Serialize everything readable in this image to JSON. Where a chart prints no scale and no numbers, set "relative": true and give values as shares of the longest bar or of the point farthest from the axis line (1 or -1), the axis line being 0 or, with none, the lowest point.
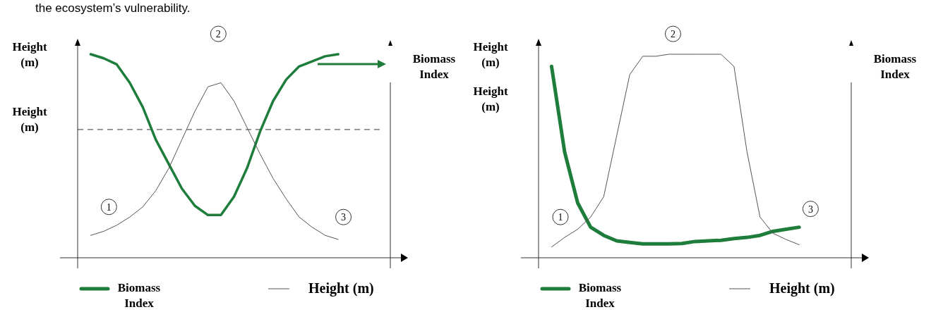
{
  "chart_data": [
    {
      "type": "line",
      "relative": true,
      "ylabel": "Height (m)",
      "y2label": "Biomass Index",
      "legend": "bottom",
      "categories": [
        null,
        null,
        null,
        null,
        null,
        null,
        null,
        null,
        null,
        null,
        null,
        null,
        null,
        null,
        null,
        null,
        null,
        null,
        null,
        null
      ],
      "series": [
        {
          "name": "Biomass Index",
          "color": "#1e7d3a",
          "values": [
            1.0,
            0.98,
            0.95,
            0.86,
            0.74,
            0.58,
            0.46,
            0.34,
            0.255,
            0.21,
            0.21,
            0.3,
            0.44,
            0.62,
            0.77,
            0.875,
            0.94,
            0.965,
            0.99,
            1.0
          ]
        },
        {
          "name": "Height (m)",
          "color": "#555555",
          "values": [
            0.11,
            0.13,
            0.16,
            0.2,
            0.25,
            0.33,
            0.44,
            0.58,
            0.72,
            0.84,
            0.86,
            0.77,
            0.64,
            0.51,
            0.39,
            0.29,
            0.2,
            0.15,
            0.11,
            0.09
          ]
        }
      ],
      "ref_lines": [
        {
          "axis": "y",
          "value": 0.63,
          "label": "Height (m)",
          "line_style": "dashed"
        }
      ],
      "annotations": [
        "the ecosystem’s vulnerability.",
        "1",
        "2",
        "3"
      ]
    },
    {
      "type": "line",
      "relative": true,
      "ylabel": "Height (m)",
      "y2label": "Biomass Index",
      "legend": "bottom",
      "categories": [
        null,
        null,
        null,
        null,
        null,
        null,
        null,
        null,
        null,
        null,
        null,
        null,
        null,
        null,
        null,
        null,
        null,
        null,
        null,
        null
      ],
      "series": [
        {
          "name": "Biomass Index",
          "color": "#1e7d3a",
          "values": [
            0.94,
            0.52,
            0.27,
            0.15,
            0.11,
            0.083,
            0.075,
            0.068,
            0.068,
            0.068,
            0.07,
            0.08,
            0.083,
            0.086,
            0.094,
            0.1,
            0.11,
            0.13,
            0.14,
            0.15
          ]
        },
        {
          "name": "Height (m)",
          "color": "#555555",
          "values": [
            0.053,
            0.1,
            0.14,
            0.2,
            0.3,
            0.6,
            0.9,
            0.99,
            0.99,
            1.0,
            1.0,
            1.0,
            1.0,
            1.0,
            0.94,
            0.52,
            0.2,
            0.12,
            0.09,
            0.064
          ]
        }
      ],
      "annotations": [
        "Height (m)",
        "1",
        "2",
        "3"
      ]
    }
  ]
}
